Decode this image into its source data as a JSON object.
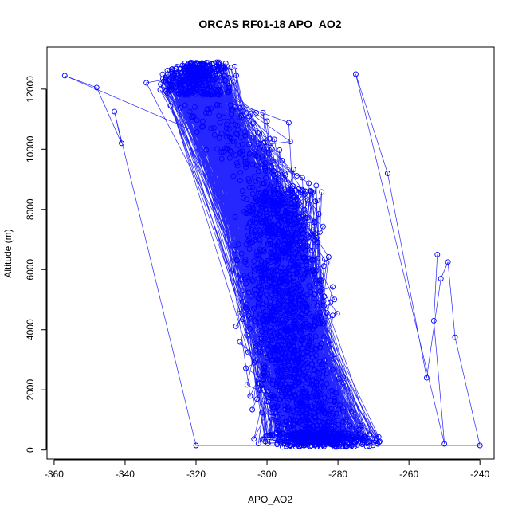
{
  "chart_data": {
    "type": "scatter",
    "title": "ORCAS RF01-18 APO_AO2",
    "xlabel": "APO_AO2",
    "ylabel": "Altitude (m)",
    "xlim": [
      -362,
      -236
    ],
    "ylim": [
      -300,
      13400
    ],
    "x_ticks": [
      -360,
      -340,
      -320,
      -300,
      -280,
      -260,
      -240
    ],
    "y_ticks": [
      0,
      2000,
      4000,
      6000,
      8000,
      10000,
      12000
    ],
    "x_tick_labels": [
      "-360",
      "-340",
      "-320",
      "-300",
      "-280",
      "-260",
      "-240"
    ],
    "y_tick_labels": [
      "0",
      "2000",
      "4000",
      "6000",
      "8000",
      "10000",
      "12000"
    ],
    "color": "#0000ff",
    "marker": "open-circle",
    "connected": true,
    "grid": false,
    "legend": "none",
    "profile": [
      {
        "alt": 150,
        "center": -284,
        "spread": 12
      },
      {
        "alt": 1000,
        "center": -288,
        "spread": 10
      },
      {
        "alt": 2000,
        "center": -291,
        "spread": 9
      },
      {
        "alt": 3000,
        "center": -293,
        "spread": 9
      },
      {
        "alt": 4000,
        "center": -294,
        "spread": 9
      },
      {
        "alt": 5000,
        "center": -295,
        "spread": 10
      },
      {
        "alt": 6000,
        "center": -296,
        "spread": 10
      },
      {
        "alt": 7000,
        "center": -296,
        "spread": 9
      },
      {
        "alt": 8000,
        "center": -298,
        "spread": 8
      },
      {
        "alt": 8600,
        "center": -296,
        "spread": 9
      },
      {
        "alt": 9500,
        "center": -303,
        "spread": 9
      },
      {
        "alt": 10500,
        "center": -308,
        "spread": 10
      },
      {
        "alt": 11500,
        "center": -316,
        "spread": 10
      },
      {
        "alt": 12200,
        "center": -322,
        "spread": 8
      },
      {
        "alt": 12850,
        "center": -318,
        "spread": 6
      }
    ],
    "outliers": [
      {
        "x": -357,
        "y": 12450
      },
      {
        "x": -348,
        "y": 12050
      },
      {
        "x": -341,
        "y": 10200
      },
      {
        "x": -343,
        "y": 11250
      },
      {
        "x": -320,
        "y": 150
      },
      {
        "x": -240,
        "y": 150
      },
      {
        "x": -247,
        "y": 3750
      },
      {
        "x": -249,
        "y": 6250
      },
      {
        "x": -251,
        "y": 5700
      },
      {
        "x": -255,
        "y": 2400
      },
      {
        "x": -266,
        "y": 9200
      },
      {
        "x": -275,
        "y": 12500
      },
      {
        "x": -250,
        "y": 200
      },
      {
        "x": -253,
        "y": 4300
      },
      {
        "x": -252,
        "y": 6500
      }
    ]
  }
}
